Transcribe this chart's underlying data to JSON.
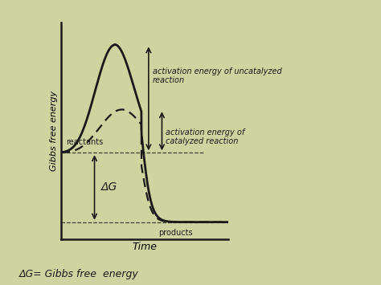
{
  "bg_color": "#cdd4a0",
  "plot_bg": "#cdd4a0",
  "line_color": "#1a1a1a",
  "reactant_level": 0.4,
  "product_level": 0.08,
  "uncatalyzed_peak": 0.9,
  "catalyzed_peak": 0.6,
  "xlabel": "Time",
  "ylabel": "Gibbs free energy",
  "bottom_text": "ΔG= Gibbs free  energy",
  "annot_uncatalyzed": "activation energy of uncatalyzed\nreaction",
  "annot_catalyzed": "activation energy of\ncatalyzed reaction",
  "annot_reactants": "reactants",
  "annot_products": "products",
  "annot_dG": "ΔG"
}
